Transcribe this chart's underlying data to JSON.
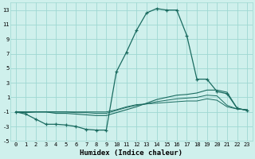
{
  "xlabel": "Humidex (Indice chaleur)",
  "bg_color": "#cff0ec",
  "grid_color": "#9ed8d2",
  "line_color": "#1a6b60",
  "xlim": [
    -0.5,
    23.5
  ],
  "ylim": [
    -5,
    14
  ],
  "xticks": [
    0,
    1,
    2,
    3,
    4,
    5,
    6,
    7,
    8,
    9,
    10,
    11,
    12,
    13,
    14,
    15,
    16,
    17,
    18,
    19,
    20,
    21,
    22,
    23
  ],
  "yticks": [
    -5,
    -3,
    -1,
    1,
    3,
    5,
    7,
    9,
    11,
    13
  ],
  "x": [
    0,
    1,
    2,
    3,
    4,
    5,
    6,
    7,
    8,
    9,
    10,
    11,
    12,
    13,
    14,
    15,
    16,
    17,
    18,
    19,
    20,
    21,
    22,
    23
  ],
  "main_y": [
    -1,
    -1.3,
    -2,
    -2.7,
    -2.7,
    -2.8,
    -3.0,
    -3.4,
    -3.5,
    -3.5,
    4.5,
    7.2,
    10.2,
    12.6,
    13.2,
    13.0,
    13.0,
    9.5,
    3.5,
    3.5,
    1.8,
    1.5,
    -0.5,
    -0.8
  ],
  "line2_y": [
    -1,
    -1.1,
    -1,
    -1.0,
    -1.2,
    -1.2,
    -1.3,
    -1.4,
    -1.5,
    -1.5,
    -1.1,
    -0.7,
    -0.3,
    0.2,
    0.7,
    1.0,
    1.3,
    1.4,
    1.6,
    2.0,
    2.0,
    1.7,
    -0.5,
    -0.8
  ],
  "line3_y": [
    -1,
    -1.0,
    -1,
    -1.0,
    -1.0,
    -1.0,
    -1.1,
    -1.1,
    -1.2,
    -1.2,
    -0.8,
    -0.4,
    -0.1,
    0.1,
    0.4,
    0.6,
    0.8,
    0.9,
    1.0,
    1.3,
    1.2,
    -0.1,
    -0.6,
    -0.7
  ],
  "line4_y": [
    -1,
    -1.0,
    -1,
    -1.0,
    -1.0,
    -1.0,
    -1.0,
    -1.0,
    -1.0,
    -1.0,
    -0.7,
    -0.3,
    0.0,
    0.1,
    0.2,
    0.3,
    0.4,
    0.5,
    0.5,
    0.8,
    0.6,
    -0.3,
    -0.6,
    -0.7
  ]
}
